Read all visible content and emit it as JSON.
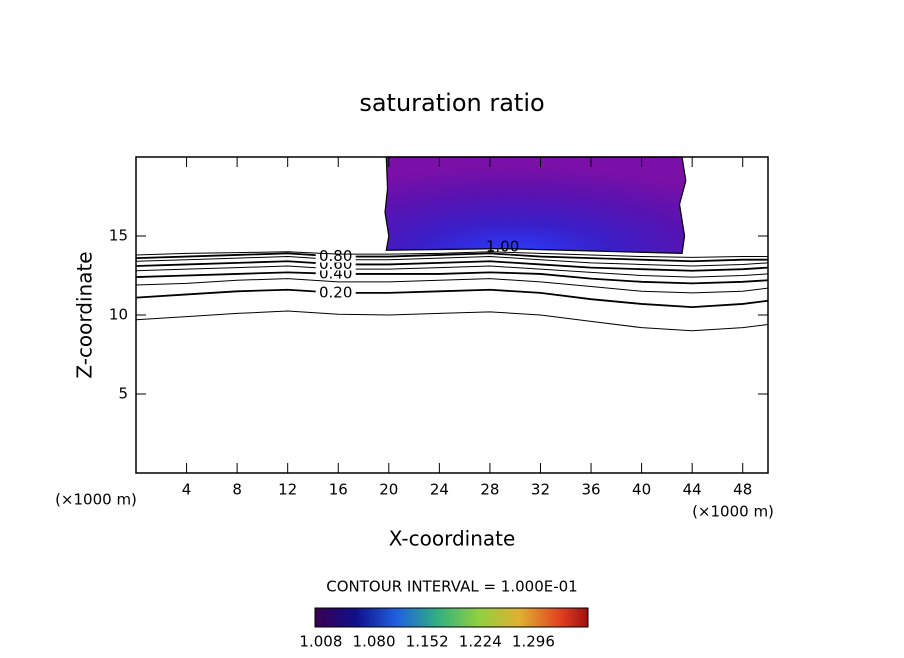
{
  "chart_data": {
    "type": "contour",
    "title": "saturation ratio",
    "x_label": "X-coordinate",
    "y_label": "Z-coordinate",
    "x_unit": "(×1000 m)",
    "y_unit": "(×1000 m)",
    "xlim": [
      0,
      50
    ],
    "ylim": [
      0,
      20
    ],
    "xticks": [
      4,
      8,
      12,
      16,
      20,
      24,
      28,
      32,
      36,
      40,
      44,
      48
    ],
    "yticks": [
      5,
      10,
      15
    ],
    "x": [
      0,
      4,
      8,
      12,
      16,
      20,
      24,
      28,
      32,
      36,
      40,
      44,
      48,
      50
    ],
    "contours": [
      {
        "level": 0.1,
        "values": [
          9.7,
          9.9,
          10.1,
          10.25,
          10.05,
          10.0,
          10.1,
          10.2,
          10.0,
          9.6,
          9.2,
          9.0,
          9.2,
          9.4
        ]
      },
      {
        "level": 0.2,
        "label": "0.20",
        "label_x": 15.8,
        "values": [
          11.1,
          11.3,
          11.5,
          11.6,
          11.4,
          11.4,
          11.5,
          11.6,
          11.4,
          11.0,
          10.7,
          10.5,
          10.7,
          10.9
        ]
      },
      {
        "level": 0.3,
        "values": [
          11.9,
          12.0,
          12.2,
          12.3,
          12.1,
          12.1,
          12.2,
          12.3,
          12.1,
          11.8,
          11.5,
          11.4,
          11.5,
          11.7
        ]
      },
      {
        "level": 0.4,
        "label": "0.40",
        "label_x": 15.8,
        "values": [
          12.4,
          12.5,
          12.6,
          12.7,
          12.6,
          12.6,
          12.6,
          12.7,
          12.6,
          12.3,
          12.1,
          12.0,
          12.1,
          12.2
        ]
      },
      {
        "level": 0.5,
        "values": [
          12.8,
          12.9,
          13.0,
          13.1,
          12.9,
          12.9,
          13.0,
          13.1,
          12.9,
          12.7,
          12.5,
          12.4,
          12.5,
          12.6
        ]
      },
      {
        "level": 0.6,
        "label": "0.60",
        "label_x": 15.8,
        "values": [
          13.1,
          13.2,
          13.3,
          13.4,
          13.2,
          13.2,
          13.3,
          13.4,
          13.2,
          13.0,
          12.9,
          12.8,
          12.9,
          13.0
        ]
      },
      {
        "level": 0.7,
        "values": [
          13.4,
          13.5,
          13.6,
          13.7,
          13.5,
          13.5,
          13.6,
          13.7,
          13.5,
          13.3,
          13.2,
          13.1,
          13.2,
          13.3
        ]
      },
      {
        "level": 0.8,
        "label": "0.80",
        "label_x": 15.8,
        "values": [
          13.6,
          13.7,
          13.8,
          13.9,
          13.7,
          13.7,
          13.8,
          13.9,
          13.7,
          13.6,
          13.5,
          13.4,
          13.5,
          13.5
        ]
      },
      {
        "level": 0.9,
        "values": [
          13.8,
          13.9,
          13.95,
          14.0,
          13.85,
          13.85,
          13.9,
          14.0,
          13.9,
          13.8,
          13.7,
          13.65,
          13.7,
          13.7
        ]
      }
    ],
    "region": {
      "level": 1.0,
      "label": "1.00",
      "label_x": 29,
      "label_y": 14.3,
      "x": [
        19.8,
        19.9,
        19.7,
        20.0,
        19.8,
        29,
        43.2,
        43.4,
        43.0,
        43.5,
        43.2
      ],
      "y": [
        20,
        18,
        16.5,
        15,
        14.1,
        14.2,
        13.9,
        15,
        17,
        18.5,
        20
      ]
    },
    "contour_interval": "CONTOUR INTERVAL = 1.000E-01",
    "colorbar_lim": [
      1.0,
      1.37
    ],
    "colorbar_ticks": [
      1.008,
      {
        "value": 1.08,
        "label": "1.080"
      },
      1.152,
      1.224,
      1.296
    ]
  }
}
